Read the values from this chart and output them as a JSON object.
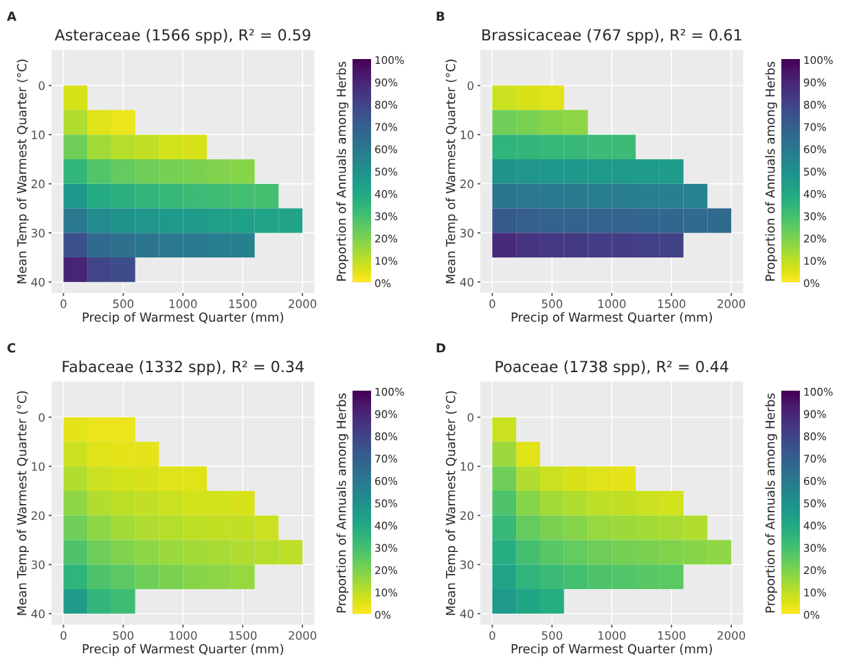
{
  "chart_data": [
    {
      "type": "heatmap",
      "title": "Asteraceae (1566 spp), R² = 0.59",
      "xlabel": "Precip of Warmest Quarter (mm)",
      "ylabel": "Mean Temp of Warmest Quarter (°C)",
      "clabel": "Proportion of Annuals among Herbs",
      "annotations": [
        "A"
      ],
      "x": [
        100,
        300,
        500,
        700,
        900,
        1100,
        1300,
        1500,
        1700,
        1900
      ],
      "y": [
        2.5,
        7.5,
        12.5,
        17.5,
        22.5,
        27.5,
        32.5,
        37.5
      ],
      "cells": [
        [
          6,
          null,
          null,
          null,
          null,
          null,
          null,
          null,
          null,
          null
        ],
        [
          12,
          5,
          3,
          null,
          null,
          null,
          null,
          null,
          null,
          null
        ],
        [
          22,
          14,
          11,
          9,
          7,
          6,
          null,
          null,
          null,
          null
        ],
        [
          34,
          27,
          24,
          22,
          21,
          20,
          19,
          18,
          null,
          null
        ],
        [
          47,
          39,
          36,
          34,
          33,
          32,
          31,
          30,
          30,
          null
        ],
        [
          60,
          52,
          49,
          47,
          46,
          45,
          44,
          43,
          42,
          42
        ],
        [
          75,
          66,
          63,
          61,
          60,
          59,
          58,
          57,
          null,
          null
        ],
        [
          90,
          80,
          77,
          null,
          null,
          null,
          null,
          null,
          null,
          null
        ]
      ],
      "xlim": [
        -100,
        2100
      ],
      "ylim": [
        42.25,
        -7.25
      ],
      "xticks": [
        0,
        500,
        1000,
        1500,
        2000
      ],
      "yticks": [
        0,
        10,
        20,
        30,
        40
      ],
      "clim": [
        0,
        100
      ],
      "cticks": [
        {
          "value": 0,
          "label": "0%"
        },
        {
          "value": 10,
          "label": "10%"
        },
        {
          "value": 20,
          "label": "20%"
        },
        {
          "value": 30,
          "label": "30%"
        },
        {
          "value": 40,
          "label": "40%"
        },
        {
          "value": 50,
          "label": "50%"
        },
        {
          "value": 60,
          "label": "60%"
        },
        {
          "value": 70,
          "label": "70%"
        },
        {
          "value": 80,
          "label": "80%"
        },
        {
          "value": 90,
          "label": "90%"
        },
        {
          "value": 100,
          "label": "100%"
        }
      ],
      "grid": true
    },
    {
      "type": "heatmap",
      "title": "Brassicaceae (767 spp), R² = 0.61",
      "xlabel": "Precip of Warmest Quarter (mm)",
      "ylabel": "Mean Temp of Warmest Quarter (°C)",
      "clabel": "Proportion of Annuals among Herbs",
      "annotations": [
        "B"
      ],
      "x": [
        100,
        300,
        500,
        700,
        900,
        1100,
        1300,
        1500,
        1700,
        1900
      ],
      "y": [
        2.5,
        7.5,
        12.5,
        17.5,
        22.5,
        27.5,
        32.5
      ],
      "cells": [
        [
          8,
          6,
          5,
          null,
          null,
          null,
          null,
          null,
          null,
          null
        ],
        [
          22,
          20,
          18,
          17,
          null,
          null,
          null,
          null,
          null,
          null
        ],
        [
          35,
          34,
          33,
          33,
          32,
          32,
          null,
          null,
          null,
          null
        ],
        [
          49,
          48,
          47,
          47,
          46,
          46,
          45,
          45,
          null,
          null
        ],
        [
          61,
          60,
          59,
          59,
          58,
          58,
          57,
          57,
          56,
          null
        ],
        [
          72,
          70,
          69,
          69,
          68,
          68,
          67,
          67,
          66,
          66
        ],
        [
          88,
          85,
          84,
          83,
          82,
          82,
          81,
          81,
          null,
          null
        ]
      ],
      "xlim": [
        -100,
        2100
      ],
      "ylim": [
        42.25,
        -7.25
      ],
      "xticks": [
        0,
        500,
        1000,
        1500,
        2000
      ],
      "yticks": [
        0,
        10,
        20,
        30,
        40
      ],
      "clim": [
        0,
        100
      ],
      "cticks": [
        {
          "value": 0,
          "label": "0%"
        },
        {
          "value": 10,
          "label": "10%"
        },
        {
          "value": 20,
          "label": "20%"
        },
        {
          "value": 30,
          "label": "30%"
        },
        {
          "value": 40,
          "label": "40%"
        },
        {
          "value": 50,
          "label": "50%"
        },
        {
          "value": 60,
          "label": "60%"
        },
        {
          "value": 70,
          "label": "70%"
        },
        {
          "value": 80,
          "label": "80%"
        },
        {
          "value": 90,
          "label": "90%"
        },
        {
          "value": 100,
          "label": "100%"
        }
      ],
      "grid": true
    },
    {
      "type": "heatmap",
      "title": "Fabaceae (1332 spp), R² = 0.34",
      "xlabel": "Precip of Warmest Quarter (mm)",
      "ylabel": "Mean Temp of Warmest Quarter (°C)",
      "clabel": "Proportion of Annuals among Herbs",
      "annotations": [
        "C"
      ],
      "x": [
        100,
        300,
        500,
        700,
        900,
        1100,
        1300,
        1500,
        1700,
        1900
      ],
      "y": [
        2.5,
        7.5,
        12.5,
        17.5,
        22.5,
        27.5,
        32.5,
        37.5
      ],
      "cells": [
        [
          4,
          3,
          3,
          null,
          null,
          null,
          null,
          null,
          null,
          null
        ],
        [
          8,
          5,
          4,
          4,
          null,
          null,
          null,
          null,
          null,
          null
        ],
        [
          12,
          8,
          7,
          6,
          5,
          5,
          null,
          null,
          null,
          null
        ],
        [
          17,
          12,
          10,
          9,
          8,
          7,
          7,
          6,
          null,
          null
        ],
        [
          22,
          17,
          14,
          12,
          11,
          10,
          9,
          9,
          8,
          null
        ],
        [
          28,
          22,
          19,
          17,
          15,
          14,
          13,
          12,
          11,
          10
        ],
        [
          35,
          28,
          25,
          22,
          20,
          18,
          17,
          16,
          null,
          null
        ],
        [
          45,
          34,
          31,
          null,
          null,
          null,
          null,
          null,
          null,
          null
        ]
      ],
      "xlim": [
        -100,
        2100
      ],
      "ylim": [
        42.25,
        -7.25
      ],
      "xticks": [
        0,
        500,
        1000,
        1500,
        2000
      ],
      "yticks": [
        0,
        10,
        20,
        30,
        40
      ],
      "clim": [
        0,
        100
      ],
      "cticks": [
        {
          "value": 0,
          "label": "0%"
        },
        {
          "value": 10,
          "label": "10%"
        },
        {
          "value": 20,
          "label": "20%"
        },
        {
          "value": 30,
          "label": "30%"
        },
        {
          "value": 40,
          "label": "40%"
        },
        {
          "value": 50,
          "label": "50%"
        },
        {
          "value": 60,
          "label": "60%"
        },
        {
          "value": 70,
          "label": "70%"
        },
        {
          "value": 80,
          "label": "80%"
        },
        {
          "value": 90,
          "label": "90%"
        },
        {
          "value": 100,
          "label": "100%"
        }
      ],
      "grid": true
    },
    {
      "type": "heatmap",
      "title": "Poaceae (1738 spp), R² = 0.44",
      "xlabel": "Precip of Warmest Quarter (mm)",
      "ylabel": "Mean Temp of Warmest Quarter (°C)",
      "clabel": "Proportion of Annuals among Herbs",
      "annotations": [
        "D"
      ],
      "x": [
        100,
        300,
        500,
        700,
        900,
        1100,
        1300,
        1500,
        1700,
        1900
      ],
      "y": [
        2.5,
        7.5,
        12.5,
        17.5,
        22.5,
        27.5,
        32.5,
        37.5
      ],
      "cells": [
        [
          8,
          null,
          null,
          null,
          null,
          null,
          null,
          null,
          null,
          null
        ],
        [
          15,
          5,
          null,
          null,
          null,
          null,
          null,
          null,
          null,
          null
        ],
        [
          22,
          12,
          8,
          6,
          5,
          4,
          null,
          null,
          null,
          null
        ],
        [
          28,
          18,
          14,
          12,
          10,
          9,
          8,
          7,
          null,
          null
        ],
        [
          33,
          24,
          20,
          18,
          16,
          15,
          14,
          13,
          12,
          null
        ],
        [
          38,
          30,
          26,
          24,
          22,
          21,
          20,
          19,
          18,
          17
        ],
        [
          42,
          35,
          32,
          30,
          28,
          27,
          26,
          25,
          null,
          null
        ],
        [
          46,
          41,
          38,
          null,
          null,
          null,
          null,
          null,
          null,
          null
        ]
      ],
      "xlim": [
        -100,
        2100
      ],
      "ylim": [
        42.25,
        -7.25
      ],
      "xticks": [
        0,
        500,
        1000,
        1500,
        2000
      ],
      "yticks": [
        0,
        10,
        20,
        30,
        40
      ],
      "clim": [
        0,
        100
      ],
      "cticks": [
        {
          "value": 0,
          "label": "0%"
        },
        {
          "value": 10,
          "label": "10%"
        },
        {
          "value": 20,
          "label": "20%"
        },
        {
          "value": 30,
          "label": "30%"
        },
        {
          "value": 40,
          "label": "40%"
        },
        {
          "value": 50,
          "label": "50%"
        },
        {
          "value": 60,
          "label": "60%"
        },
        {
          "value": 70,
          "label": "70%"
        },
        {
          "value": 80,
          "label": "80%"
        },
        {
          "value": 90,
          "label": "90%"
        },
        {
          "value": 100,
          "label": "100%"
        }
      ],
      "grid": true
    }
  ]
}
